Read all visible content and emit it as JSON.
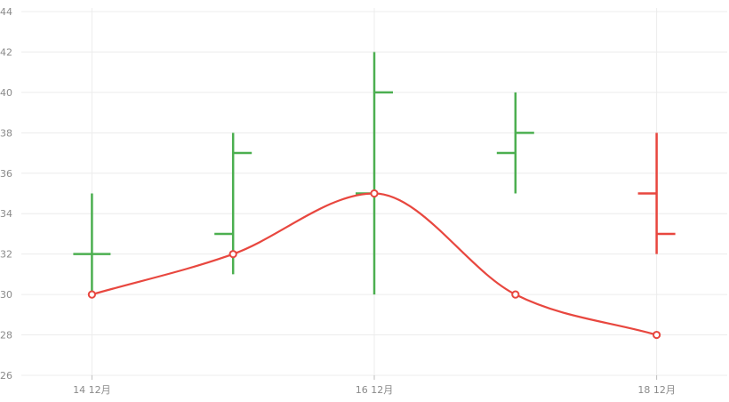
{
  "chart_data": {
    "type": "ohlc",
    "title": "",
    "xlabel": "",
    "ylabel": "",
    "ylim": [
      26,
      44
    ],
    "y_ticks": [
      26,
      28,
      30,
      32,
      34,
      36,
      38,
      40,
      42,
      44
    ],
    "x_ticks": [
      {
        "value": 14,
        "label": "14 12月"
      },
      {
        "value": 16,
        "label": "16 12月"
      },
      {
        "value": 18,
        "label": "18 12月"
      }
    ],
    "xlim": [
      13.5,
      18.5
    ],
    "grid": true,
    "ohlc": [
      {
        "x": 14,
        "open": 32,
        "high": 35,
        "low": 30,
        "close": 32
      },
      {
        "x": 15,
        "open": 33,
        "high": 38,
        "low": 31,
        "close": 37
      },
      {
        "x": 16,
        "open": 35,
        "high": 42,
        "low": 30,
        "close": 40
      },
      {
        "x": 17,
        "open": 37,
        "high": 40,
        "low": 35,
        "close": 38
      },
      {
        "x": 18,
        "open": 35,
        "high": 38,
        "low": 32,
        "close": 33
      }
    ],
    "line_series": {
      "type": "spline",
      "points": [
        {
          "x": 14,
          "y": 30
        },
        {
          "x": 15,
          "y": 32
        },
        {
          "x": 16,
          "y": 35
        },
        {
          "x": 17,
          "y": 30
        },
        {
          "x": 18,
          "y": 28
        }
      ]
    },
    "colors": {
      "up": "#4caf50",
      "down": "#e8473f",
      "line": "#e8473f",
      "grid": "#ececec",
      "tick_text": "#8a8a8a"
    }
  }
}
